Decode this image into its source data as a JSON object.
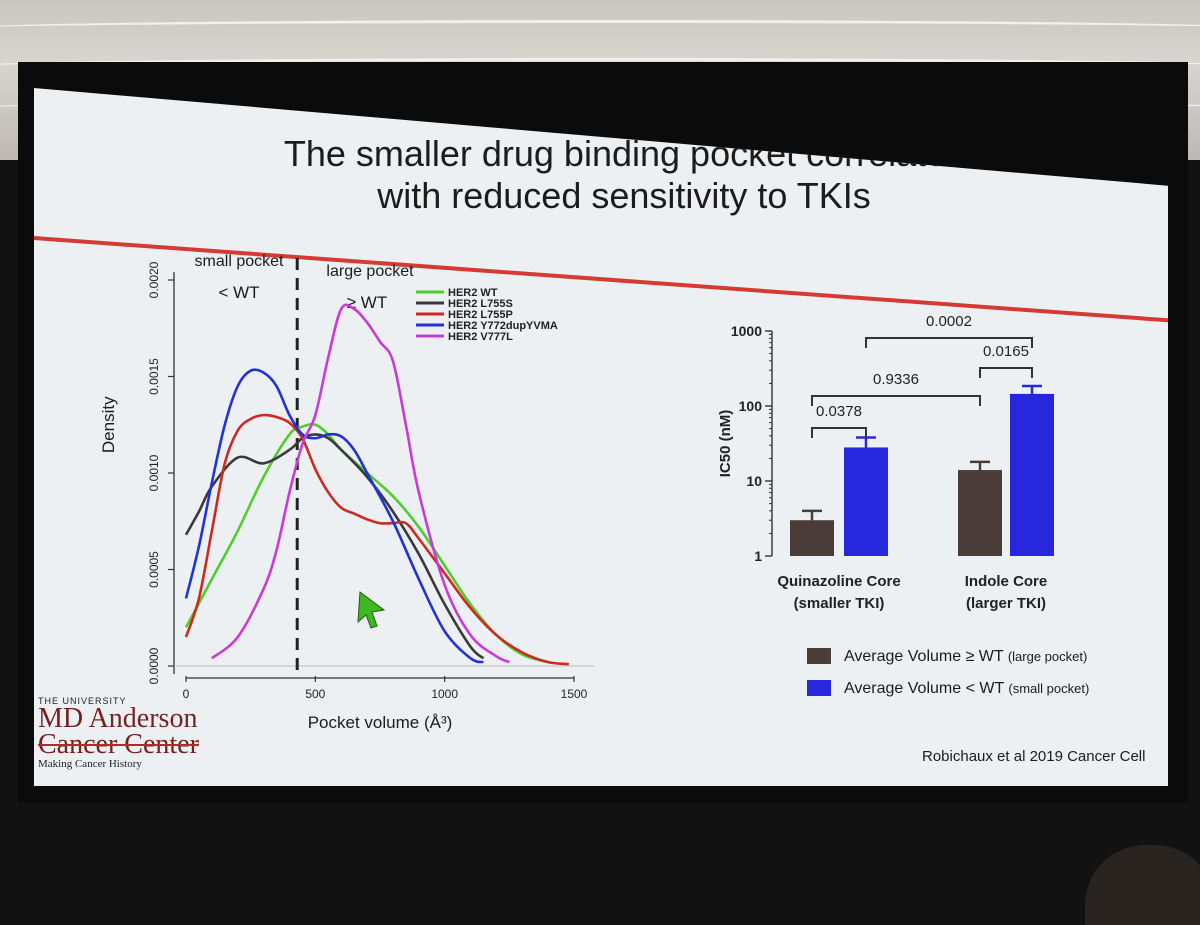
{
  "slide": {
    "title_line1": "The smaller drug binding pocket correlates",
    "title_line2": "with reduced sensitivity to TKIs",
    "citation": "Robichaux et al 2019 Cancer Cell",
    "logo": {
      "top": "THE UNIVERSITY",
      "line1": "MD Anderson",
      "line2": "Cancer Center",
      "tagline": "Making Cancer History"
    }
  },
  "colors": {
    "accent_red": "#d53b33",
    "her2_wt": "#4fce2c",
    "her2_l755s": "#3a3a3a",
    "her2_l755p": "#cc2a22",
    "her2_y772": "#2233d6",
    "her2_v777l": "#c93bd6",
    "bar_large": "#4a3c39",
    "bar_small": "#2727dd"
  },
  "chart_data": [
    {
      "type": "line",
      "title": "",
      "xlabel": "Pocket volume (Å³)",
      "ylabel": "Density",
      "xlim": [
        0,
        1500
      ],
      "ylim": [
        0,
        0.002
      ],
      "x_ticks": [
        "0",
        "500",
        "1000",
        "1500"
      ],
      "y_ticks": [
        "0.0000",
        "0.0005",
        "0.0010",
        "0.0015",
        "0.0020"
      ],
      "annotations": {
        "small_pocket": "small pocket",
        "small_pocket_sub": "< WT",
        "large_pocket": "large pocket",
        "large_pocket_sub": "≥ WT",
        "threshold_x": 430
      },
      "series": [
        {
          "name": "HER2 WT",
          "x": [
            0,
            100,
            200,
            300,
            400,
            450,
            500,
            550,
            600,
            700,
            800,
            900,
            1000,
            1100,
            1200,
            1300,
            1400
          ],
          "values": [
            0.0002,
            0.00045,
            0.0007,
            0.00098,
            0.0012,
            0.00124,
            0.00125,
            0.0012,
            0.00112,
            0.001,
            0.00088,
            0.00072,
            0.00052,
            0.00032,
            0.00016,
            6e-05,
            2e-05
          ]
        },
        {
          "name": "HER2 L755S",
          "x": [
            0,
            50,
            100,
            200,
            300,
            400,
            450,
            500,
            550,
            600,
            700,
            800,
            900,
            1000,
            1100,
            1150
          ],
          "values": [
            0.00068,
            0.0008,
            0.00093,
            0.00108,
            0.00105,
            0.00112,
            0.00118,
            0.0012,
            0.00118,
            0.00112,
            0.00098,
            0.0008,
            0.00058,
            0.00032,
            0.0001,
            4e-05
          ]
        },
        {
          "name": "HER2 L755P",
          "x": [
            0,
            50,
            100,
            150,
            200,
            250,
            300,
            350,
            400,
            450,
            500,
            550,
            600,
            650,
            700,
            750,
            800,
            850,
            900,
            1000,
            1100,
            1200,
            1300,
            1400,
            1480
          ],
          "values": [
            0.00015,
            0.00035,
            0.0007,
            0.00105,
            0.00122,
            0.00128,
            0.0013,
            0.00129,
            0.00126,
            0.00118,
            0.00102,
            0.0009,
            0.00082,
            0.00079,
            0.00076,
            0.00074,
            0.00074,
            0.00074,
            0.00066,
            0.00048,
            0.0003,
            0.00016,
            7e-05,
            2e-05,
            1e-05
          ]
        },
        {
          "name": "HER2 Y772dupYVMA",
          "x": [
            0,
            50,
            100,
            150,
            200,
            250,
            300,
            350,
            400,
            450,
            500,
            550,
            600,
            650,
            700,
            800,
            900,
            1000,
            1100,
            1150
          ],
          "values": [
            0.00035,
            0.00062,
            0.00095,
            0.00125,
            0.00145,
            0.00153,
            0.00152,
            0.00145,
            0.0013,
            0.0012,
            0.00118,
            0.0012,
            0.00119,
            0.00112,
            0.001,
            0.00075,
            0.00045,
            0.00018,
            4e-05,
            2e-05
          ]
        },
        {
          "name": "HER2 V777L",
          "x": [
            100,
            200,
            300,
            350,
            400,
            450,
            500,
            550,
            600,
            650,
            700,
            750,
            800,
            850,
            900,
            1000,
            1100,
            1200,
            1250
          ],
          "values": [
            4e-05,
            0.00015,
            0.0004,
            0.0006,
            0.0009,
            0.00115,
            0.0013,
            0.0016,
            0.00185,
            0.00185,
            0.00178,
            0.00168,
            0.00158,
            0.00125,
            0.0009,
            0.00042,
            0.00016,
            5e-05,
            2e-05
          ]
        }
      ]
    },
    {
      "type": "bar",
      "title": "",
      "xlabel": "",
      "ylabel": "IC50 (nM)",
      "yscale": "log",
      "ylim": [
        1,
        1000
      ],
      "y_ticks": [
        "1",
        "10",
        "100",
        "1000"
      ],
      "categories": [
        "Quinazoline Core",
        "Indole Core"
      ],
      "category_sublabels": [
        "(smaller TKI)",
        "(larger TKI)"
      ],
      "series": [
        {
          "name": "Average Volume ≥ WT",
          "name_suffix": "(large pocket)",
          "values": [
            3,
            14
          ],
          "error_upper": [
            4,
            18
          ]
        },
        {
          "name": "Average Volume < WT",
          "name_suffix": "(small pocket)",
          "values": [
            28,
            145
          ],
          "error_upper": [
            38,
            185
          ]
        }
      ],
      "significance": [
        {
          "label": "0.0002",
          "from": [
            0,
            1
          ],
          "to": [
            1,
            1
          ]
        },
        {
          "label": "0.0165",
          "from": [
            1,
            0
          ],
          "to": [
            1,
            1
          ]
        },
        {
          "label": "0.9336",
          "from": [
            0,
            0
          ],
          "to": [
            1,
            0
          ]
        },
        {
          "label": "0.0378",
          "from": [
            0,
            0
          ],
          "to": [
            0,
            1
          ]
        }
      ]
    }
  ]
}
